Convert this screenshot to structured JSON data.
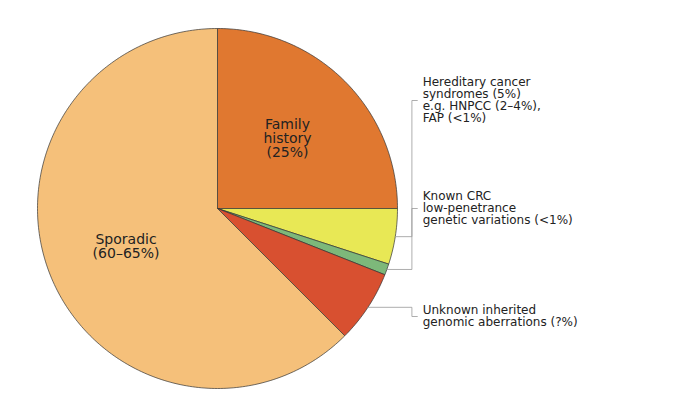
{
  "chart_data": {
    "type": "pie",
    "categories": [
      "Family\nhistory\n(25%)",
      "Hereditary cancer\nsyndromes (5%)\ne.g. HNPCC (2–4%),\nFAP (<1%)",
      "Known CRC\nlow-penetrance\ngenetic variations (<1%)",
      "Unknown inherited\ngenomic aberrations (?%)",
      "Sporadic\n(60–65%)"
    ],
    "values": [
      25,
      5,
      1,
      6.5,
      62.5
    ],
    "colors": [
      "#E07830",
      "#E8E855",
      "#7DB87A",
      "#D85030",
      "#F5C07A"
    ]
  }
}
